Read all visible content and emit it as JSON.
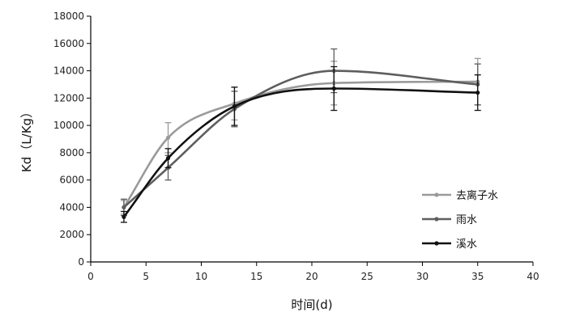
{
  "chart_data": {
    "type": "line",
    "xlabel": "时间(d)",
    "ylabel": "Kd（L/Kg）",
    "xlim": [
      0,
      40
    ],
    "ylim": [
      0,
      18000
    ],
    "xticks": [
      0,
      5,
      10,
      15,
      20,
      25,
      30,
      35,
      40
    ],
    "yticks": [
      0,
      2000,
      4000,
      6000,
      8000,
      10000,
      12000,
      14000,
      16000,
      18000
    ],
    "grid": false,
    "legend_position": "bottom-right",
    "x": [
      3,
      7,
      13,
      22,
      35
    ],
    "series": [
      {
        "name": "去离子水",
        "color": "#9a9a9a",
        "values": [
          4000,
          9100,
          11600,
          13100,
          13200
        ],
        "error": [
          500,
          1100,
          1200,
          1600,
          1700
        ]
      },
      {
        "name": "雨水",
        "color": "#5e5e5e",
        "values": [
          4000,
          6900,
          11200,
          14000,
          13000
        ],
        "error": [
          600,
          900,
          1300,
          1600,
          1500
        ]
      },
      {
        "name": "溪水",
        "color": "#111111",
        "values": [
          3300,
          7600,
          11400,
          12700,
          12400
        ],
        "error": [
          400,
          700,
          1400,
          1600,
          1300
        ]
      }
    ]
  }
}
